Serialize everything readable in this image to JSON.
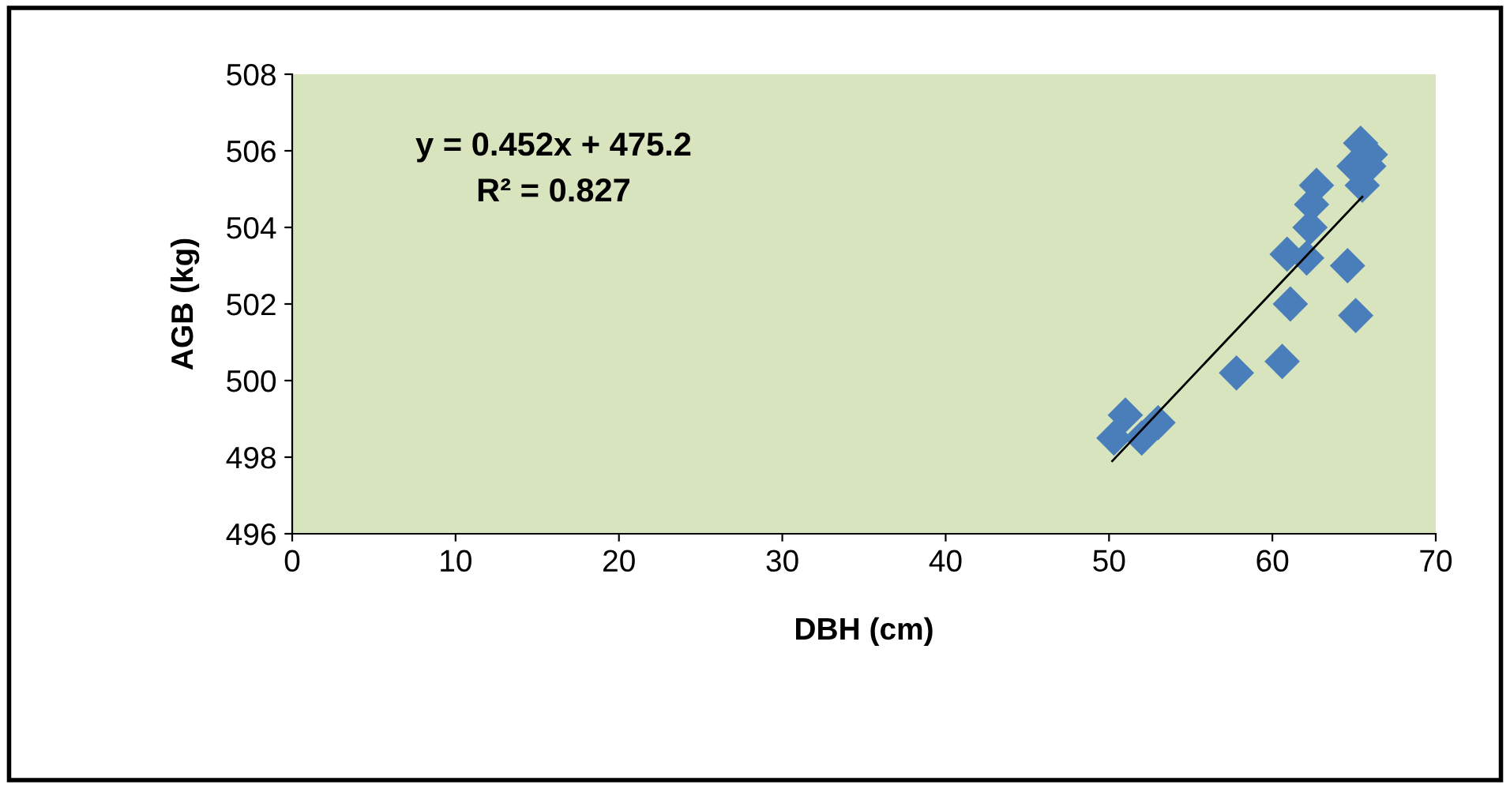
{
  "chart_data": {
    "type": "scatter",
    "xlabel": "DBH (cm)",
    "ylabel": "AGB (kg)",
    "xlim": [
      0,
      70
    ],
    "xticks": [
      0,
      10,
      20,
      30,
      40,
      50,
      60,
      70
    ],
    "ylim": [
      496,
      508
    ],
    "yticks": [
      496,
      498,
      500,
      502,
      504,
      506,
      508
    ],
    "grid": false,
    "marker": "diamond",
    "annotations": [
      "y = 0.452x + 475.2",
      "R² = 0.827"
    ],
    "series": [
      {
        "color": "#4a7ebb",
        "x": [
          50.3,
          51.0,
          52.0,
          53.0,
          57.8,
          60.6,
          61.1,
          60.9,
          62.1,
          62.3,
          62.4,
          62.7,
          64.6,
          65.1,
          65.5,
          65.0,
          65.4,
          66.0,
          65.9
        ],
        "values": [
          498.5,
          499.1,
          498.5,
          498.9,
          500.2,
          500.5,
          502.0,
          503.3,
          503.2,
          504.0,
          504.6,
          505.1,
          503.0,
          501.7,
          505.1,
          505.6,
          506.2,
          505.9,
          505.6
        ]
      },
      {
        "type": "line",
        "color": "#000000",
        "marker": "none",
        "x": [
          50.2,
          65.5
        ],
        "values": [
          497.9,
          504.8
        ]
      }
    ]
  }
}
